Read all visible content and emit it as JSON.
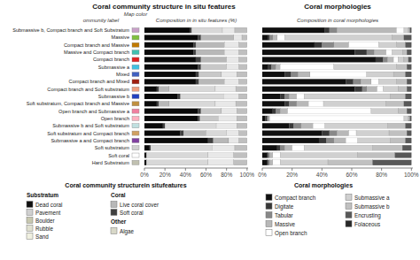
{
  "chart_data": [
    {
      "type": "bar",
      "orientation": "horizontal",
      "stacked": true,
      "title": "Coral community structure in situ features",
      "subtitle": "Composition in in situ features (%)",
      "category_header": "ommunity label",
      "category_colors_header": "Map color",
      "categories": [
        "Submassive b, Compact branch and Soft Substratum",
        "Massive",
        "Compact branch and Massive",
        "Massive and Compact branch",
        "Compact branch",
        "Submassive a",
        "Mixed",
        "Compact branch and Mixed",
        "Compact branch and Soft substratum",
        "Submassive b",
        "Soft substratum, Compact branch and Massive",
        "Open branch and Submassive a",
        "Open branch",
        "Submassive b and Soft substratum",
        "Soft substratum and Compact branch",
        "Submassive a and Compact branch",
        "Soft substratum",
        "Soft coral",
        "Hard Substratum"
      ],
      "category_colors": [
        "#c8a0c8",
        "#80c040",
        "#c07800",
        "#40c0b0",
        "#e02020",
        "#40c0e0",
        "#4060c0",
        "#a02010",
        "#f0a080",
        "#2040c0",
        "#c09040",
        "#f080a0",
        "#ffb0c0",
        "#c0e0e0",
        "#d0a060",
        "#8040a0",
        "#d0d0d0",
        "#ffffff",
        "#c0c0b0"
      ],
      "xlim": [
        0,
        101
      ],
      "xticks": [
        {
          "value": 0,
          "label": "0%"
        },
        {
          "value": 20,
          "label": "20%"
        },
        {
          "value": 40,
          "label": "40%"
        },
        {
          "value": 60,
          "label": "60%"
        },
        {
          "value": 80,
          "label": "80%"
        },
        {
          "value": 100,
          "label": "100%"
        }
      ],
      "series": [
        {
          "color": "#0a0a0a",
          "values": [
            44,
            52,
            48,
            48,
            50,
            52,
            50,
            50,
            12,
            32,
            12,
            52,
            52,
            18,
            35,
            62,
            5,
            2,
            2
          ]
        },
        {
          "color": "#404040",
          "values": [
            2,
            3,
            2,
            2,
            5,
            3,
            3,
            3,
            2,
            3,
            2,
            3,
            2,
            2,
            3,
            5,
            1,
            0,
            0
          ]
        },
        {
          "color": "#b8b8b8",
          "values": [
            0,
            32,
            28,
            28,
            25,
            0,
            0,
            25,
            10,
            0,
            10,
            0,
            0,
            0,
            22,
            15,
            0,
            0,
            0
          ]
        },
        {
          "color": "#c8c8c8",
          "values": [
            0,
            0,
            0,
            0,
            0,
            25,
            22,
            0,
            0,
            0,
            0,
            20,
            18,
            0,
            0,
            0,
            0,
            0,
            0
          ]
        },
        {
          "color": "#d8d8d8",
          "values": [
            30,
            0,
            0,
            0,
            0,
            0,
            0,
            0,
            45,
            42,
            45,
            0,
            0,
            50,
            20,
            0,
            60,
            60,
            60
          ]
        },
        {
          "color": "#e8e8e8",
          "values": [
            12,
            8,
            14,
            14,
            12,
            12,
            15,
            14,
            20,
            15,
            20,
            15,
            18,
            20,
            12,
            10,
            22,
            25,
            25
          ]
        },
        {
          "color": "#c0c0c0",
          "values": [
            12,
            5,
            8,
            8,
            8,
            8,
            10,
            8,
            11,
            8,
            11,
            10,
            10,
            10,
            8,
            8,
            12,
            13,
            13
          ]
        }
      ],
      "legend": "bottom",
      "legend_title": "Coral community structurein situfeatures",
      "legend_groups": [
        {
          "title": "Substratum",
          "items": [
            {
              "name": "Dead coral",
              "color": "#101010"
            },
            {
              "name": "Pavement",
              "color": "#d0d0d0"
            },
            {
              "name": "Boulder",
              "color": "#c8c8b0"
            },
            {
              "name": "Rubble",
              "color": "#e0e0d0"
            },
            {
              "name": "Sand",
              "color": "#f0f0e0"
            }
          ]
        },
        {
          "title": "Coral",
          "items": [
            {
              "name": "Live coral cover",
              "color": "#b8b8b8"
            },
            {
              "name": "Soft coral",
              "color": "#404040"
            }
          ]
        },
        {
          "title": "Other",
          "items": [
            {
              "name": "Algae",
              "color": "#d8d8c8"
            }
          ]
        }
      ]
    },
    {
      "type": "bar",
      "orientation": "horizontal",
      "stacked": true,
      "title": "Coral morphologies",
      "subtitle": "Composition in coral morphologies",
      "tick_labels": "x",
      "categories": [
        "Submassive b, Compact branch and Soft Substratum",
        "Massive",
        "Compact branch and Massive",
        "Massive and Compact branch",
        "Compact branch",
        "Submassive a",
        "Mixed",
        "Compact branch and Mixed",
        "Compact branch and Soft substratum",
        "Submassive b",
        "Soft substratum, Compact branch and Massive",
        "Open branch and Submassive a",
        "Open branch",
        "Submassive b and Soft substratum",
        "Soft substratum and Compact branch",
        "Submassive a and Compact branch",
        "Soft substratum",
        "Soft coral",
        "Hard Substratum"
      ],
      "xlim": [
        0,
        101
      ],
      "xticks": [
        {
          "value": 0,
          "label": "0%"
        },
        {
          "value": 20,
          "label": "20%"
        },
        {
          "value": 40,
          "label": "40%"
        },
        {
          "value": 60,
          "label": "60%"
        },
        {
          "value": 80,
          "label": "80%"
        },
        {
          "value": 100,
          "label": "100%"
        }
      ],
      "series": [
        {
          "name": "Compact branch",
          "color": "#101010",
          "values": [
            42,
            4,
            35,
            62,
            76,
            4,
            15,
            56,
            62,
            12,
            15,
            7,
            2,
            18,
            40,
            38,
            10,
            3,
            3
          ]
        },
        {
          "name": "Digitate",
          "color": "#383838",
          "values": [
            3,
            1,
            5,
            8,
            5,
            2,
            4,
            5,
            5,
            3,
            3,
            2,
            1,
            3,
            5,
            5,
            2,
            1,
            1
          ]
        },
        {
          "name": "Tabular",
          "color": "#888888",
          "values": [
            5,
            2,
            8,
            5,
            3,
            3,
            5,
            5,
            3,
            3,
            5,
            3,
            1,
            5,
            5,
            5,
            3,
            1,
            1
          ]
        },
        {
          "name": "Massive",
          "color": "#b8b8b8",
          "values": [
            40,
            3,
            10,
            8,
            4,
            3,
            8,
            7,
            7,
            5,
            8,
            5,
            1,
            8,
            8,
            8,
            5,
            2,
            2
          ]
        },
        {
          "name": "Open branch",
          "color": "#ffffff",
          "values": [
            5,
            5,
            20,
            4,
            3,
            36,
            38,
            5,
            4,
            5,
            10,
            56,
            90,
            8,
            5,
            8,
            8,
            5,
            5
          ]
        },
        {
          "name": "Submassive a",
          "color": "#d0d0d0",
          "values": [
            3,
            72,
            12,
            7,
            4,
            42,
            18,
            12,
            10,
            58,
            42,
            18,
            3,
            42,
            22,
            22,
            46,
            52,
            32
          ]
        },
        {
          "name": "Submassive b",
          "color": "#c0c0c0",
          "values": [
            1,
            8,
            6,
            3,
            3,
            7,
            8,
            7,
            6,
            10,
            12,
            6,
            1,
            12,
            12,
            10,
            20,
            25,
            30
          ]
        },
        {
          "name": "Encrusting",
          "color": "#585858",
          "values": [
            1,
            5,
            4,
            3,
            2,
            3,
            4,
            3,
            3,
            4,
            5,
            3,
            1,
            4,
            3,
            4,
            6,
            11,
            26
          ]
        }
      ],
      "legend": "bottom",
      "legend_title": "Coral morphologies",
      "legend_extra": [
        {
          "name": "Folaceous",
          "color": "#282828"
        }
      ]
    }
  ]
}
